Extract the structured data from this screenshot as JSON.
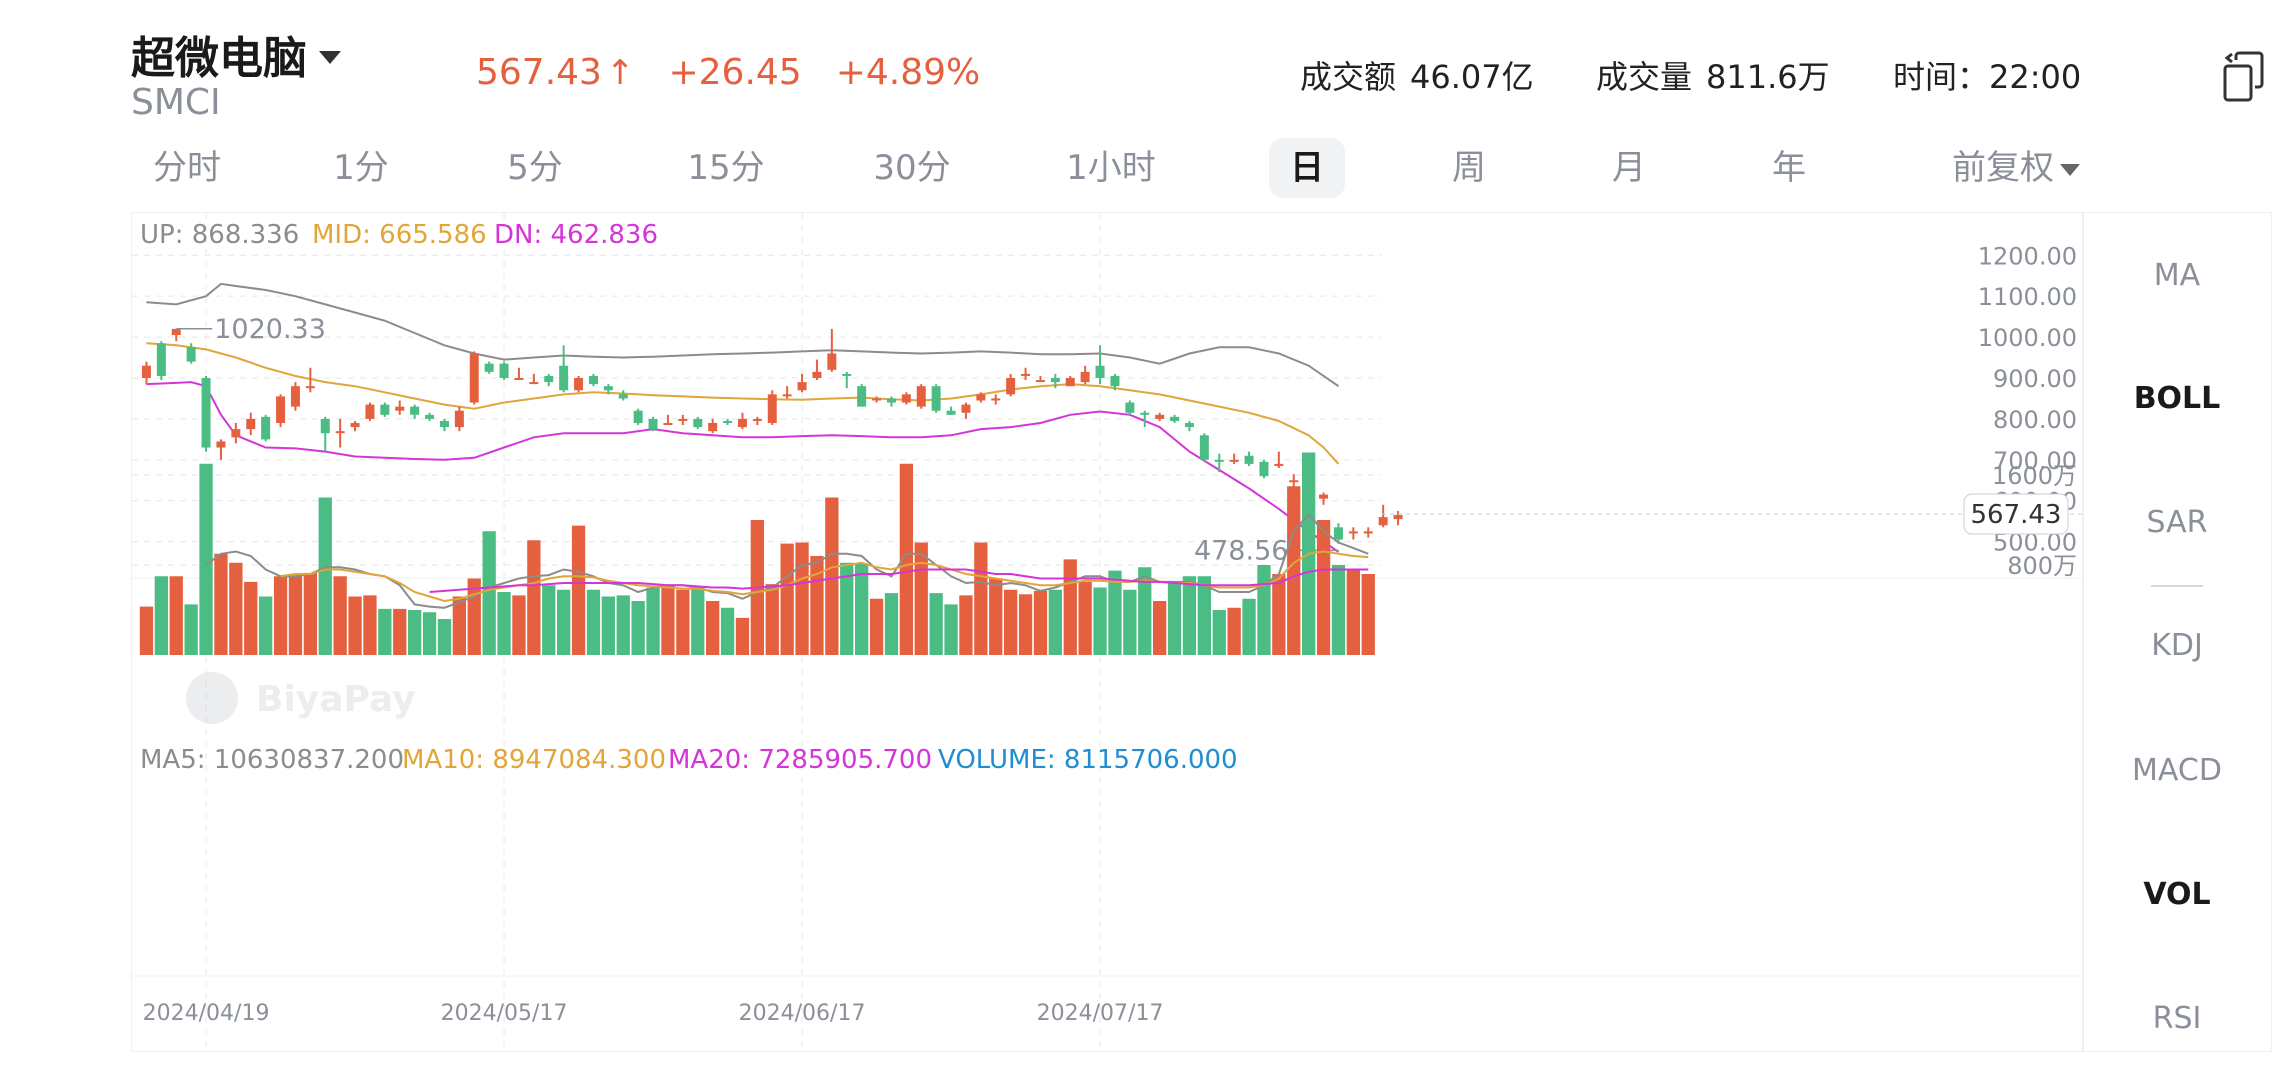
{
  "header": {
    "stock_name": "超微电脑",
    "ticker": "SMCI",
    "price": "567.43",
    "change": "+26.45",
    "change_pct": "+4.89%",
    "turnover_label": "成交额",
    "turnover_value": "46.07亿",
    "volume_label": "成交量",
    "volume_value": "811.6万",
    "time_label": "时间：",
    "time_value": "22:00"
  },
  "colors": {
    "up": "#e5603f",
    "down": "#4cbc85",
    "mid": "#e1a53a",
    "dn": "#d535d8",
    "upper": "#8c8c8c",
    "volume": "#1f8ed1"
  },
  "icons": {
    "copy": "copy-icon",
    "dropdown": "chevron-down-icon"
  },
  "tabs": [
    {
      "label": "分时"
    },
    {
      "label": "1分"
    },
    {
      "label": "5分"
    },
    {
      "label": "15分"
    },
    {
      "label": "30分"
    },
    {
      "label": "1小时"
    },
    {
      "label": "日",
      "active": true
    },
    {
      "label": "周"
    },
    {
      "label": "月"
    },
    {
      "label": "年"
    },
    {
      "label": "前复权"
    }
  ],
  "indicators": [
    {
      "label": "MA"
    },
    {
      "label": "BOLL",
      "active": true
    },
    {
      "label": "SAR"
    },
    {
      "label": "KDJ"
    },
    {
      "label": "MACD"
    },
    {
      "label": "VOL",
      "active": true
    },
    {
      "label": "RSI"
    }
  ],
  "watermark": "BiyaPay",
  "chart_data": [
    {
      "type": "candlestick",
      "legend": {
        "up": "UP: 868.336",
        "mid": "MID: 665.586",
        "dn": "DN: 462.836"
      },
      "y_ticks": [
        "1200.00",
        "1100.00",
        "1000.00",
        "900.00",
        "800.00",
        "700.00",
        "600.00",
        "500.00"
      ],
      "ylim": [
        460,
        1230
      ],
      "x_ticks": [
        "2024/04/19",
        "2024/05/17",
        "2024/06/17",
        "2024/07/17"
      ],
      "x_tick_index": [
        4,
        24,
        44,
        64
      ],
      "high_label": "1020.33",
      "low_label": "478.56",
      "last_price": "567.43",
      "ohlc": [
        [
          900,
          930,
          940,
          885
        ],
        [
          985,
          905,
          990,
          895
        ],
        [
          1005,
          1020,
          1020,
          990
        ],
        [
          975,
          940,
          985,
          935
        ],
        [
          900,
          730,
          905,
          720
        ],
        [
          730,
          745,
          750,
          700
        ],
        [
          755,
          775,
          790,
          740
        ],
        [
          775,
          800,
          815,
          760
        ],
        [
          805,
          750,
          810,
          745
        ],
        [
          790,
          855,
          860,
          780
        ],
        [
          830,
          880,
          890,
          820
        ],
        [
          880,
          880,
          925,
          865
        ],
        [
          800,
          765,
          805,
          720
        ],
        [
          770,
          770,
          800,
          730
        ],
        [
          780,
          790,
          795,
          770
        ],
        [
          800,
          835,
          840,
          795
        ],
        [
          835,
          810,
          840,
          805
        ],
        [
          820,
          830,
          845,
          810
        ],
        [
          830,
          810,
          835,
          800
        ],
        [
          810,
          800,
          815,
          795
        ],
        [
          795,
          780,
          800,
          770
        ],
        [
          780,
          820,
          830,
          770
        ],
        [
          840,
          960,
          965,
          835
        ],
        [
          935,
          915,
          940,
          910
        ],
        [
          935,
          900,
          940,
          895
        ],
        [
          900,
          900,
          925,
          895
        ],
        [
          890,
          890,
          910,
          885
        ],
        [
          905,
          890,
          910,
          880
        ],
        [
          930,
          870,
          980,
          865
        ],
        [
          870,
          900,
          905,
          865
        ],
        [
          905,
          885,
          910,
          880
        ],
        [
          880,
          870,
          885,
          860
        ],
        [
          860,
          850,
          870,
          845
        ],
        [
          820,
          790,
          825,
          785
        ],
        [
          800,
          775,
          805,
          770
        ],
        [
          790,
          790,
          810,
          785
        ],
        [
          795,
          800,
          810,
          785
        ],
        [
          800,
          780,
          805,
          775
        ],
        [
          770,
          790,
          800,
          765
        ],
        [
          795,
          790,
          800,
          785
        ],
        [
          780,
          800,
          815,
          775
        ],
        [
          795,
          800,
          805,
          785
        ],
        [
          790,
          860,
          870,
          785
        ],
        [
          860,
          860,
          880,
          850
        ],
        [
          870,
          890,
          910,
          865
        ],
        [
          900,
          915,
          945,
          895
        ],
        [
          920,
          960,
          1020,
          915
        ],
        [
          910,
          905,
          915,
          875
        ],
        [
          880,
          830,
          885,
          830
        ],
        [
          850,
          850,
          855,
          840
        ],
        [
          850,
          840,
          855,
          830
        ],
        [
          840,
          860,
          865,
          835
        ],
        [
          830,
          880,
          885,
          825
        ],
        [
          880,
          820,
          885,
          815
        ],
        [
          820,
          810,
          830,
          810
        ],
        [
          815,
          835,
          840,
          800
        ],
        [
          845,
          860,
          865,
          840
        ],
        [
          850,
          850,
          860,
          835
        ],
        [
          860,
          900,
          910,
          855
        ],
        [
          905,
          910,
          925,
          895
        ],
        [
          895,
          895,
          905,
          890
        ],
        [
          900,
          890,
          910,
          875
        ],
        [
          880,
          900,
          905,
          885
        ],
        [
          890,
          915,
          930,
          885
        ],
        [
          930,
          900,
          980,
          885
        ],
        [
          905,
          880,
          910,
          870
        ],
        [
          840,
          815,
          845,
          810
        ],
        [
          815,
          810,
          820,
          780
        ],
        [
          800,
          810,
          815,
          795
        ],
        [
          805,
          795,
          810,
          790
        ],
        [
          790,
          780,
          795,
          770
        ],
        [
          760,
          700,
          765,
          695
        ],
        [
          700,
          695,
          715,
          670
        ],
        [
          700,
          700,
          715,
          690
        ],
        [
          710,
          690,
          720,
          685
        ],
        [
          695,
          660,
          700,
          655
        ],
        [
          690,
          690,
          720,
          680
        ],
        [
          650,
          650,
          665,
          605
        ],
        [
          580,
          515,
          595,
          505
        ],
        [
          605,
          615,
          620,
          590
        ],
        [
          535,
          505,
          545,
          495
        ],
        [
          525,
          525,
          535,
          505
        ],
        [
          520,
          525,
          535,
          510
        ],
        [
          540,
          560,
          590,
          535
        ],
        [
          555,
          565,
          575,
          540
        ]
      ],
      "upper_band": [
        [
          0,
          1085
        ],
        [
          2,
          1080
        ],
        [
          4,
          1100
        ],
        [
          5,
          1130
        ],
        [
          6,
          1125
        ],
        [
          8,
          1115
        ],
        [
          10,
          1100
        ],
        [
          12,
          1080
        ],
        [
          14,
          1060
        ],
        [
          16,
          1040
        ],
        [
          18,
          1010
        ],
        [
          20,
          980
        ],
        [
          22,
          960
        ],
        [
          24,
          945
        ],
        [
          26,
          950
        ],
        [
          28,
          955
        ],
        [
          30,
          952
        ],
        [
          32,
          950
        ],
        [
          34,
          952
        ],
        [
          36,
          955
        ],
        [
          38,
          958
        ],
        [
          40,
          960
        ],
        [
          42,
          962
        ],
        [
          44,
          965
        ],
        [
          46,
          968
        ],
        [
          48,
          965
        ],
        [
          50,
          962
        ],
        [
          52,
          960
        ],
        [
          54,
          962
        ],
        [
          56,
          965
        ],
        [
          58,
          962
        ],
        [
          60,
          958
        ],
        [
          62,
          958
        ],
        [
          64,
          960
        ],
        [
          66,
          950
        ],
        [
          68,
          935
        ],
        [
          70,
          960
        ],
        [
          72,
          975
        ],
        [
          74,
          975
        ],
        [
          76,
          960
        ],
        [
          78,
          930
        ],
        [
          80,
          880
        ]
      ],
      "mid_band": [
        [
          0,
          985
        ],
        [
          2,
          980
        ],
        [
          4,
          970
        ],
        [
          6,
          950
        ],
        [
          8,
          925
        ],
        [
          10,
          905
        ],
        [
          12,
          890
        ],
        [
          14,
          880
        ],
        [
          16,
          865
        ],
        [
          18,
          850
        ],
        [
          20,
          835
        ],
        [
          22,
          825
        ],
        [
          24,
          840
        ],
        [
          26,
          850
        ],
        [
          28,
          860
        ],
        [
          30,
          865
        ],
        [
          32,
          862
        ],
        [
          34,
          858
        ],
        [
          36,
          855
        ],
        [
          38,
          852
        ],
        [
          40,
          850
        ],
        [
          42,
          848
        ],
        [
          44,
          847
        ],
        [
          46,
          850
        ],
        [
          48,
          852
        ],
        [
          50,
          848
        ],
        [
          52,
          845
        ],
        [
          54,
          850
        ],
        [
          56,
          860
        ],
        [
          58,
          872
        ],
        [
          60,
          880
        ],
        [
          62,
          885
        ],
        [
          64,
          880
        ],
        [
          66,
          870
        ],
        [
          68,
          860
        ],
        [
          70,
          845
        ],
        [
          72,
          830
        ],
        [
          74,
          815
        ],
        [
          76,
          795
        ],
        [
          78,
          760
        ],
        [
          79,
          730
        ],
        [
          80,
          690
        ]
      ],
      "lower_band": [
        [
          0,
          885
        ],
        [
          2,
          888
        ],
        [
          3,
          890
        ],
        [
          4,
          880
        ],
        [
          5,
          810
        ],
        [
          6,
          760
        ],
        [
          8,
          730
        ],
        [
          10,
          728
        ],
        [
          12,
          720
        ],
        [
          14,
          708
        ],
        [
          16,
          705
        ],
        [
          18,
          702
        ],
        [
          20,
          700
        ],
        [
          22,
          705
        ],
        [
          24,
          730
        ],
        [
          26,
          755
        ],
        [
          28,
          765
        ],
        [
          30,
          765
        ],
        [
          32,
          765
        ],
        [
          34,
          775
        ],
        [
          36,
          765
        ],
        [
          38,
          760
        ],
        [
          40,
          755
        ],
        [
          42,
          755
        ],
        [
          44,
          758
        ],
        [
          46,
          760
        ],
        [
          48,
          758
        ],
        [
          50,
          755
        ],
        [
          52,
          755
        ],
        [
          54,
          760
        ],
        [
          56,
          775
        ],
        [
          58,
          780
        ],
        [
          60,
          790
        ],
        [
          62,
          810
        ],
        [
          64,
          818
        ],
        [
          66,
          810
        ],
        [
          68,
          780
        ],
        [
          70,
          720
        ],
        [
          72,
          675
        ],
        [
          74,
          630
        ],
        [
          76,
          580
        ],
        [
          78,
          525
        ],
        [
          80,
          475
        ]
      ]
    },
    {
      "type": "bar",
      "legend": {
        "ma5": "MA5: 10630837.200",
        "ma10": "MA10: 8947084.300",
        "ma20": "MA20: 7285905.700",
        "volume": "VOLUME: 8115706.000"
      },
      "y_ticks": [
        "1600万",
        "800万"
      ],
      "unit": "万",
      "ylim": [
        0,
        2000
      ],
      "values": [
        430,
        700,
        700,
        450,
        1700,
        900,
        820,
        650,
        520,
        700,
        700,
        730,
        1400,
        700,
        520,
        530,
        410,
        410,
        400,
        380,
        320,
        520,
        680,
        1100,
        560,
        530,
        1020,
        620,
        580,
        1150,
        580,
        520,
        530,
        480,
        600,
        620,
        580,
        600,
        480,
        420,
        330,
        1200,
        630,
        990,
        1000,
        880,
        1400,
        820,
        810,
        500,
        550,
        1700,
        1000,
        550,
        450,
        530,
        1000,
        680,
        580,
        540,
        570,
        580,
        850,
        650,
        600,
        750,
        580,
        780,
        480,
        640,
        700,
        700,
        400,
        420,
        500,
        800,
        720,
        1500,
        1800,
        1200,
        800,
        760,
        720
      ],
      "ma5": [
        null,
        null,
        null,
        null,
        800,
        900,
        920,
        880,
        760,
        700,
        700,
        720,
        780,
        780,
        760,
        720,
        700,
        620,
        450,
        430,
        420,
        470,
        520,
        600,
        640,
        680,
        700,
        710,
        760,
        740,
        700,
        640,
        620,
        560,
        600,
        620,
        620,
        600,
        560,
        550,
        500,
        560,
        600,
        700,
        800,
        820,
        900,
        900,
        880,
        760,
        700,
        900,
        900,
        800,
        700,
        640,
        650,
        620,
        640,
        620,
        570,
        600,
        650,
        700,
        700,
        650,
        650,
        700,
        650,
        650,
        650,
        620,
        560,
        560,
        560,
        620,
        720,
        1100,
        1250,
        1100,
        1000,
        950,
        900
      ],
      "ma10": [
        null,
        null,
        null,
        null,
        null,
        null,
        null,
        null,
        null,
        700,
        720,
        720,
        760,
        760,
        740,
        720,
        700,
        640,
        560,
        520,
        480,
        500,
        540,
        580,
        600,
        620,
        640,
        680,
        700,
        700,
        690,
        660,
        640,
        620,
        610,
        600,
        590,
        590,
        570,
        560,
        540,
        560,
        580,
        620,
        680,
        720,
        780,
        800,
        820,
        780,
        760,
        800,
        820,
        800,
        760,
        720,
        700,
        680,
        660,
        640,
        620,
        620,
        640,
        660,
        660,
        650,
        650,
        660,
        650,
        640,
        640,
        620,
        600,
        600,
        600,
        620,
        680,
        820,
        900,
        920,
        900,
        880,
        870
      ],
      "ma20": [
        null,
        null,
        null,
        null,
        null,
        null,
        null,
        null,
        null,
        null,
        null,
        null,
        null,
        null,
        null,
        null,
        null,
        null,
        null,
        560,
        570,
        580,
        590,
        600,
        610,
        620,
        620,
        630,
        640,
        640,
        640,
        640,
        640,
        640,
        630,
        620,
        620,
        610,
        600,
        600,
        590,
        600,
        610,
        620,
        640,
        660,
        680,
        700,
        720,
        720,
        720,
        740,
        760,
        760,
        760,
        760,
        740,
        720,
        720,
        700,
        680,
        680,
        680,
        680,
        680,
        670,
        660,
        650,
        650,
        640,
        630,
        620,
        620,
        620,
        620,
        630,
        640,
        700,
        740,
        760,
        760,
        760,
        760
      ]
    }
  ]
}
